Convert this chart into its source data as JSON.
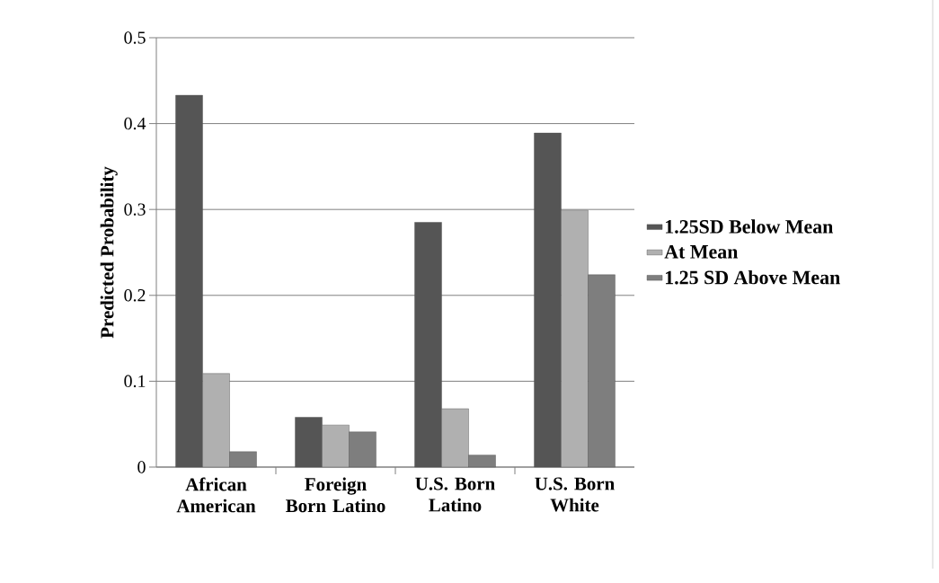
{
  "chart_data": {
    "type": "bar",
    "ylabel": "Predicted Probability",
    "categories": [
      "African American",
      "Foreign Born Latino",
      "U.S. Born Latino",
      "U.S. Born White"
    ],
    "series": [
      {
        "name": "1.25SD Below Mean",
        "color": "#555555",
        "values": [
          0.433,
          0.058,
          0.285,
          0.389
        ]
      },
      {
        "name": "At Mean",
        "color": "#b0b0b0",
        "values": [
          0.109,
          0.049,
          0.068,
          0.299
        ]
      },
      {
        "name": "1.25 SD Above Mean",
        "color": "#7e7e7e",
        "values": [
          0.018,
          0.041,
          0.014,
          0.224
        ]
      }
    ],
    "ylim": [
      0,
      0.5
    ],
    "yticks": [
      0,
      0.1,
      0.2,
      0.3,
      0.4,
      0.5
    ],
    "grid": "y",
    "legend": "right"
  }
}
